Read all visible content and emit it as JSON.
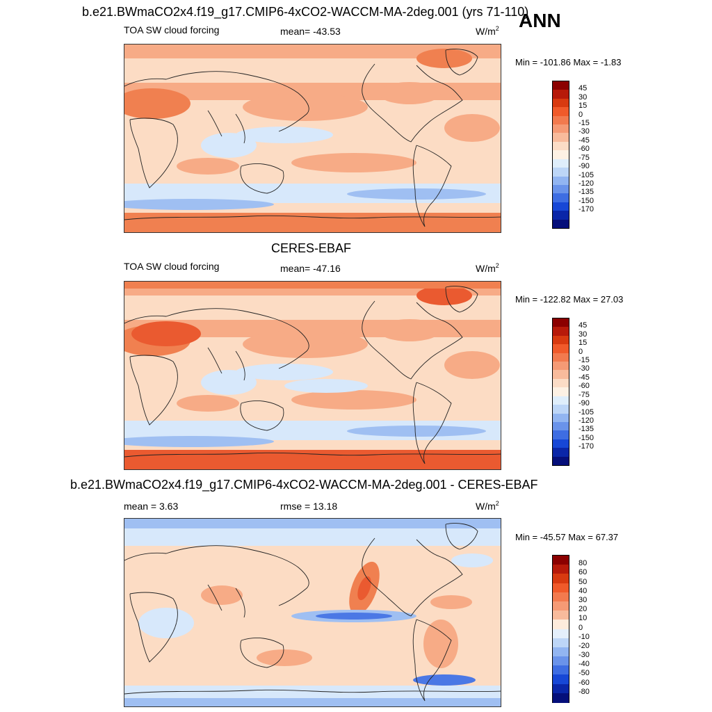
{
  "header": {
    "case_title": "b.e21.BWmaCO2x4.f19_g17.CMIP6-4xCO2-WACCM-MA-2deg.001 (yrs 71-110)",
    "season": "ANN"
  },
  "panels": [
    {
      "id": "model",
      "title": "",
      "variable": "TOA SW cloud forcing",
      "stat1": "mean= -43.53",
      "stat2": "",
      "units_base": "W/m",
      "units_exp": "2",
      "minmax": "Min = -101.86 Max =  -1.83"
    },
    {
      "id": "obs",
      "title": "CERES-EBAF",
      "variable": "TOA SW cloud forcing",
      "stat1": "mean= -47.16",
      "stat2": "",
      "units_base": "W/m",
      "units_exp": "2",
      "minmax": "Min = -122.82 Max =  27.03"
    },
    {
      "id": "diff",
      "title": "b.e21.BWmaCO2x4.f19_g17.CMIP6-4xCO2-WACCM-MA-2deg.001 - CERES-EBAF",
      "variable": "",
      "stat1": "mean =   3.63",
      "stat2": "rmse =  13.18",
      "units_base": "W/m",
      "units_exp": "2",
      "minmax": "Min = -45.57 Max =  67.37"
    }
  ],
  "colorbars": {
    "field": {
      "labels": [
        "45",
        "30",
        "15",
        "0",
        "-15",
        "-30",
        "-45",
        "-60",
        "-75",
        "-90",
        "-105",
        "-120",
        "-135",
        "-150",
        "-170"
      ],
      "colors": [
        "#8b0000",
        "#b71a0a",
        "#d83a10",
        "#f05a2a",
        "#f27a4e",
        "#f59a75",
        "#f8bb9c",
        "#fbdcc6",
        "#fdf1e4",
        "#dfeefb",
        "#bdd6f7",
        "#92b5f1",
        "#6a93ea",
        "#3e6de2",
        "#1747d6",
        "#0a26a8",
        "#050f7a"
      ]
    },
    "diff": {
      "labels": [
        "80",
        "60",
        "50",
        "40",
        "30",
        "20",
        "10",
        "0",
        "-10",
        "-20",
        "-30",
        "-40",
        "-50",
        "-60",
        "-80"
      ],
      "colors": [
        "#8b0000",
        "#b71a0a",
        "#d83a10",
        "#f05a2a",
        "#f27a4e",
        "#f59a75",
        "#f8bb9c",
        "#fdebdc",
        "#e4effb",
        "#bdd6f7",
        "#92b5f1",
        "#6a93ea",
        "#3e6de2",
        "#1747d6",
        "#0a26a8",
        "#050f7a"
      ]
    }
  },
  "palette": {
    "ocean_light_blue": "#d7e8fb",
    "mid_blue": "#9fbff2",
    "deep_blue": "#4b78e5",
    "peach": "#fcdcc4",
    "salmon": "#f7ab86",
    "orange": "#f08050",
    "red_orange": "#ea5a30",
    "coast_line": "#222222"
  }
}
